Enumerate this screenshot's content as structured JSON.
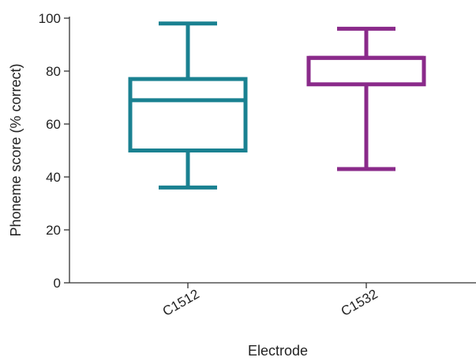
{
  "chart_data": {
    "type": "box",
    "title": "",
    "xlabel": "Electrode",
    "ylabel": "Phoneme score (% correct)",
    "ylim": [
      0,
      100
    ],
    "yticks": [
      0,
      20,
      40,
      60,
      80,
      100
    ],
    "grid": false,
    "series": [
      {
        "name": "C1512",
        "min": 36,
        "q1": 50,
        "median": 69,
        "q3": 77,
        "max": 98,
        "color": "#1a8191"
      },
      {
        "name": "C1532",
        "min": 43,
        "q1": 75,
        "median": 85,
        "q3": 85,
        "max": 96,
        "color": "#8a2a8a"
      }
    ]
  }
}
